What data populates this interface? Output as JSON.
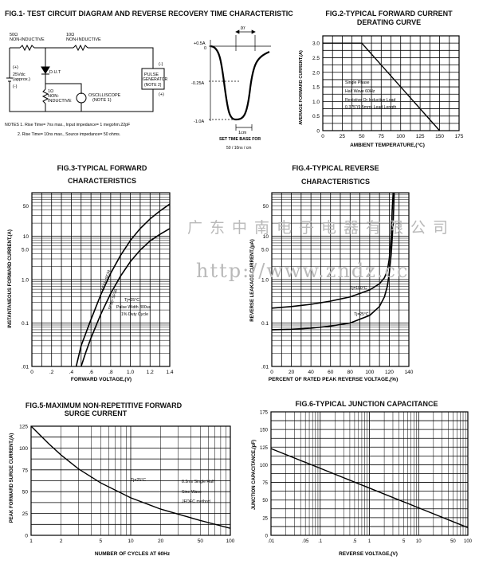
{
  "watermark": {
    "cn": "广东中南电子电器有限公司",
    "url": "http://www.zndz.cc"
  },
  "fig1": {
    "title": "FIG.1- TEST CIRCUIT DIAGRAM AND REVERSE RECOVERY TIME CHARACTERISTIC",
    "r50": "50Ω",
    "r50_note": "NON-INDUCTIVE",
    "r10": "10Ω",
    "r10_note": "NON-INDUCTIVE",
    "plus1": "(+)",
    "vdc": "25Vdc",
    "approx": "(approx.)",
    "minus1": "(-)",
    "dut": "D.U.T",
    "r1": "1Ω",
    "r1_note1": "NON-",
    "r1_note2": "INDUCTIVE",
    "osc1": "OSCILLISCOPE",
    "osc2": "(NOTE 1)",
    "minus2": "(-)",
    "pulse1": "PULSE",
    "pulse2": "GENERATOR",
    "pulse3": "(NOTE 2)",
    "plus2": "(+)",
    "note1": "NOTES  1. Rise Time= 7ns max., Input impedance= 1 megohm.22pF",
    "note2": "2. Rise Time= 10ns max., Source impedance= 50 ohms.",
    "trr": "trr",
    "y_top": "+0.5A",
    "y_zero": "0",
    "y_mid": "-0.25A",
    "y_bot": "-1.0A",
    "cm": "1cm",
    "base1": "SET TIME BASE FOR",
    "base2": "50 / 10ns / cm"
  },
  "fig2": {
    "title1": "FIG.2-TYPICAL FORWARD CURRENT",
    "title2": "DERATING CURVE",
    "ylabel": "AVERAGE FORWARD CURRENT,(A)",
    "xlabel": "AMBIENT TEMPERATURE,(°C)",
    "ann1": "Single Phase",
    "ann2": "Half Wave 60Hz",
    "ann3": "Resistive Or Inductive Load",
    "ann4": "0.375\"(9.5mm) Lead Length",
    "chart_data": {
      "type": "line",
      "x": [
        0,
        50,
        150
      ],
      "y": [
        3.0,
        3.0,
        0
      ],
      "x_ticks": [
        "0",
        "25",
        "50",
        "75",
        "100",
        "125",
        "150",
        "175"
      ],
      "y_ticks": [
        "0",
        "0.5",
        "1.0",
        "1.5",
        "2.0",
        "2.5",
        "3.0"
      ],
      "xlim": [
        0,
        175
      ],
      "ylim": [
        0,
        3.25
      ],
      "grid": true
    }
  },
  "fig3": {
    "title1": "FIG.3-TYPICAL FORWARD",
    "title2": "CHARACTERISTICS",
    "ylabel": "INSTANTANEOUS FORWARD CURRENT,(A)",
    "xlabel": "FORWARD VOLTAGE,(V)",
    "ann1": "Tj=25°C",
    "ann2": "Pulse Width 300us",
    "ann3": "1% Duty Cycle",
    "chart_data": {
      "type": "line",
      "y_scale": "log",
      "xlim": [
        0,
        1.4
      ],
      "ylim": [
        0.01,
        100
      ],
      "x_ticks": [
        "0",
        ".2",
        ".4",
        ".6",
        ".8",
        "1.0",
        "1.2",
        "1.4"
      ],
      "y_ticks": [
        "50",
        "10",
        "5.0",
        "1.0",
        "0.1",
        ".01"
      ],
      "series": [
        {
          "name": "SF31~SF34",
          "x": [
            0.45,
            0.5,
            0.6,
            0.7,
            0.8,
            0.9,
            1.0,
            1.1,
            1.2,
            1.3,
            1.4
          ],
          "y": [
            0.01,
            0.03,
            0.12,
            0.45,
            1.4,
            3.6,
            8,
            15,
            25,
            38,
            55
          ]
        },
        {
          "name": "SF35~SF36",
          "x": [
            0.5,
            0.55,
            0.6,
            0.7,
            0.8,
            0.9,
            1.0,
            1.1,
            1.2,
            1.3,
            1.4
          ],
          "y": [
            0.01,
            0.022,
            0.045,
            0.16,
            0.48,
            1.2,
            2.6,
            4.8,
            7.8,
            11,
            15
          ]
        }
      ],
      "grid": true
    }
  },
  "fig4": {
    "title1": "FIG.4-TYPICAL REVERSE",
    "title2": "CHARACTERISTICS",
    "ylabel": "REVERSE LEAKAGE CURRENT,(µA)",
    "xlabel": "PERCENT OF RATED PEAK REVERSE VOLTAGE,(%)",
    "chart_data": {
      "type": "line",
      "y_scale": "log",
      "xlim": [
        0,
        140
      ],
      "ylim": [
        0.01,
        100
      ],
      "x_ticks": [
        "0",
        "20",
        "40",
        "60",
        "80",
        "100",
        "120",
        "140"
      ],
      "y_ticks": [
        "50",
        "10",
        "5.0",
        "1.0",
        "0.1",
        ".01"
      ],
      "series": [
        {
          "name": "Tj=100°C",
          "x": [
            0,
            20,
            40,
            60,
            80,
            100,
            110,
            115,
            118,
            120,
            122,
            123,
            124
          ],
          "y": [
            0.22,
            0.24,
            0.27,
            0.32,
            0.4,
            0.58,
            0.8,
            1.1,
            1.6,
            3,
            10,
            40,
            100
          ]
        },
        {
          "name": "Tj=25°C",
          "x": [
            0,
            20,
            40,
            60,
            80,
            100,
            110,
            115,
            118,
            120,
            122,
            124,
            125
          ],
          "y": [
            0.07,
            0.072,
            0.076,
            0.085,
            0.1,
            0.15,
            0.24,
            0.4,
            0.7,
            1.4,
            4,
            20,
            100
          ]
        }
      ],
      "grid": true
    }
  },
  "fig5": {
    "title1": "FIG.5-MAXIMUM NON-REPETITIVE FORWARD",
    "title2": "SURGE CURRENT",
    "ylabel": "PEAK FORWARD SURGE CURRENT,(A)",
    "xlabel": "NUMBER OF CYCLES AT 60Hz",
    "ann_tj": "Tj=25°C",
    "ann1": "8.3ms Single Half",
    "ann2": "Sine Wave",
    "ann3": "JEDEC method",
    "chart_data": {
      "type": "line",
      "x_scale": "log",
      "xlim": [
        1,
        100
      ],
      "ylim": [
        0,
        125
      ],
      "x_ticks": [
        "1",
        "2",
        "5",
        "10",
        "20",
        "50",
        "100"
      ],
      "y_ticks": [
        "0",
        "25",
        "50",
        "75",
        "100",
        "125"
      ],
      "x": [
        1,
        1.5,
        2,
        3,
        5,
        10,
        20,
        50,
        100
      ],
      "y": [
        125,
        105,
        92,
        76,
        60,
        43,
        30,
        17,
        8
      ],
      "grid": true
    }
  },
  "fig6": {
    "title": "FIG.6-TYPICAL JUNCTION CAPACITANCE",
    "ylabel": "JUNCTION CAPACITANCE,(pF)",
    "xlabel": "REVERSE VOLTAGE,(V)",
    "chart_data": {
      "type": "line",
      "x_scale": "log",
      "xlim": [
        0.01,
        100
      ],
      "ylim": [
        0,
        175
      ],
      "x_ticks": [
        ".01",
        ".05",
        ".1",
        ".5",
        "1",
        "5",
        "10",
        "50",
        "100"
      ],
      "y_ticks": [
        "0",
        "25",
        "50",
        "75",
        "100",
        "125",
        "150",
        "175"
      ],
      "x": [
        0.01,
        0.1,
        1,
        10,
        100
      ],
      "y": [
        123,
        95,
        67,
        39,
        11
      ],
      "grid": true
    }
  }
}
